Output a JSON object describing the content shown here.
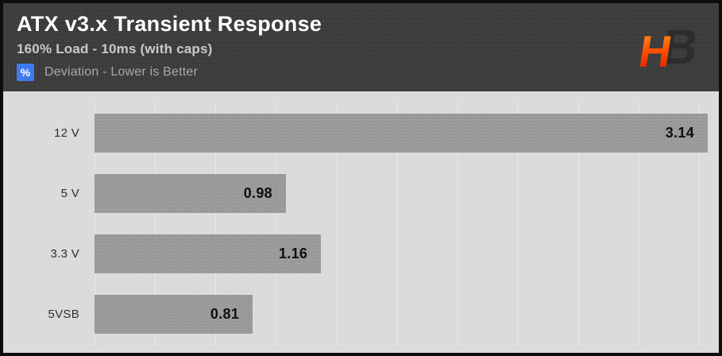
{
  "header": {
    "title": "ATX v3.x Transient Response",
    "subtitle": "160% Load - 10ms (with caps)",
    "legend_badge": "%",
    "legend_label": "Deviation - Lower is Better",
    "logo_letters": {
      "h": "H",
      "b": "B"
    }
  },
  "chart_data": {
    "type": "bar",
    "orientation": "horizontal",
    "title": "ATX v3.x Transient Response",
    "subtitle": "160% Load - 10ms (with caps)",
    "value_unit": "%",
    "note": "Deviation - Lower is Better",
    "categories": [
      "12 V",
      "5 V",
      "3.3 V",
      "5VSB"
    ],
    "values": [
      3.14,
      0.98,
      1.16,
      0.81
    ],
    "value_labels": [
      "3.14",
      "0.98",
      "1.16",
      "0.81"
    ],
    "xlim": [
      0,
      3.14
    ],
    "grid": true,
    "gridline_count": 11,
    "legend_position": "none"
  },
  "colors": {
    "border": "#0c0c0c",
    "header_bg": "#3c3c3c",
    "chart_bg": "#dbdbdb",
    "gridline": "#e9e9e9",
    "bar": "#9c9c9c",
    "value_text": "#0f0f0f",
    "category_text": "#2e2e2e",
    "title_text": "#ffffff",
    "subtitle_text": "#c9c9c9",
    "legend_text": "#a9a9a9",
    "badge_bg": "#3d7bef",
    "badge_text": "#ffffff",
    "logo_orange_top": "#ff9a2a",
    "logo_orange_mid": "#ff4d00",
    "logo_red_bottom": "#c81a00",
    "logo_dark": "#2d2d2d"
  }
}
